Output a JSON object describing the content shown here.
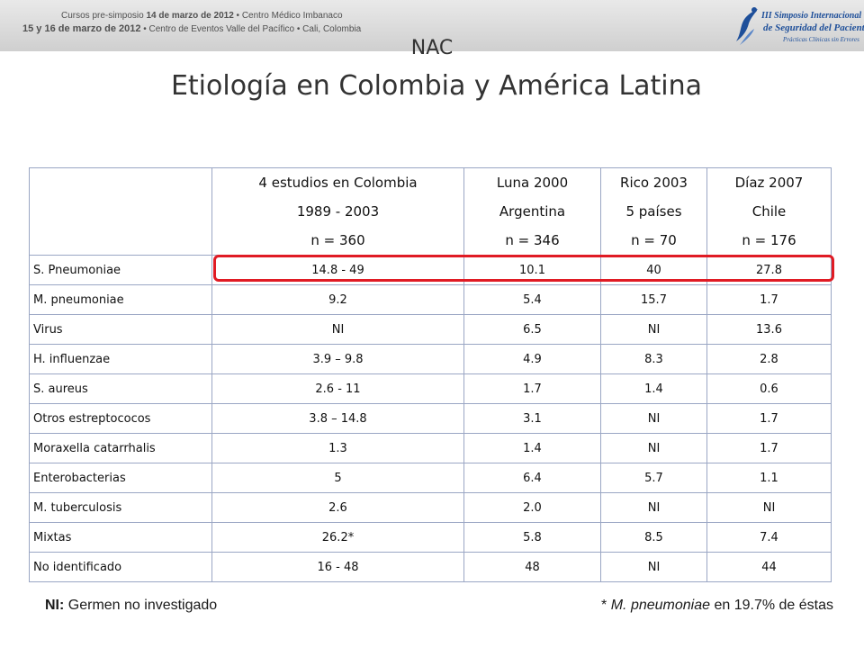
{
  "banner": {
    "line1_pre": "Cursos pre-simposio ",
    "line1_date": "14 de marzo de 2012",
    "line1_post": "  •  Centro Médico Imbanaco",
    "line2_date": "15 y 16 de marzo de 2012",
    "line2_post": "  •  Centro de Eventos Valle del Pacífico  •  Cali, Colombia",
    "logo_line1": "III Simposio Internacional",
    "logo_line2": "de Seguridad del Paciente",
    "logo_line3": "Prácticas Clínicas sin Errores",
    "logo_color": "#1e4f9a"
  },
  "title": {
    "line1": "NAC",
    "line2": "Etiología en Colombia y América Latina"
  },
  "table": {
    "headers": [
      [
        "",
        "",
        ""
      ],
      [
        "4 estudios en Colombia",
        "1989 - 2003",
        "n = 360"
      ],
      [
        "Luna 2000",
        "Argentina",
        "n = 346"
      ],
      [
        "Rico 2003",
        "5 países",
        "n = 70"
      ],
      [
        "Díaz 2007",
        "Chile",
        "n = 176"
      ]
    ],
    "rows": [
      [
        "S. Pneumoniae",
        "14.8 - 49",
        "10.1",
        "40",
        "27.8"
      ],
      [
        "M. pneumoniae",
        "9.2",
        "5.4",
        "15.7",
        "1.7"
      ],
      [
        "Virus",
        "NI",
        "6.5",
        "NI",
        "13.6"
      ],
      [
        "H. influenzae",
        "3.9 – 9.8",
        "4.9",
        "8.3",
        "2.8"
      ],
      [
        "S. aureus",
        "2.6 - 11",
        "1.7",
        "1.4",
        "0.6"
      ],
      [
        "Otros estreptococos",
        "3.8 – 14.8",
        "3.1",
        "NI",
        "1.7"
      ],
      [
        "Moraxella catarrhalis",
        "1.3",
        "1.4",
        "NI",
        "1.7"
      ],
      [
        "Enterobacterias",
        "5",
        "6.4",
        "5.7",
        "1.1"
      ],
      [
        "M. tuberculosis",
        "2.6",
        "2.0",
        "NI",
        "NI"
      ],
      [
        "Mixtas",
        "26.2*",
        "5.8",
        "8.5",
        "7.4"
      ],
      [
        "No identificado",
        "16 - 48",
        "48",
        "NI",
        "44"
      ]
    ],
    "highlight_color": "#e01b24",
    "border_color": "#9aa6c4"
  },
  "footnotes": {
    "left_bold": "NI:",
    "left_text": " Germen no investigado",
    "right_star": "* ",
    "right_italic": "M. pneumoniae",
    "right_text": " en 19.7% de éstas"
  }
}
